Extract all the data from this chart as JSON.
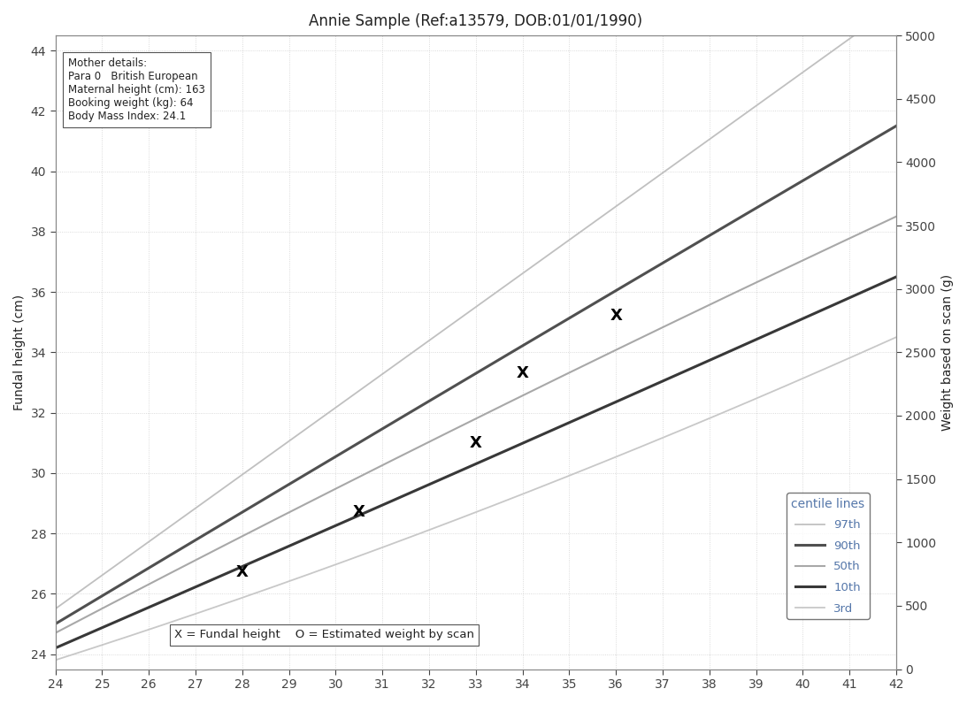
{
  "title": "Annie Sample (Ref:a13579, DOB:01/01/1990)",
  "ylabel_left": "Fundal height (cm)",
  "ylabel_right": "Weight based on scan (g)",
  "xlim": [
    24,
    42
  ],
  "ylim_left": [
    23.5,
    44.5
  ],
  "ylim_right": [
    0,
    5000
  ],
  "xlabel_ticks": [
    24,
    25,
    26,
    27,
    28,
    29,
    30,
    31,
    32,
    33,
    34,
    35,
    36,
    37,
    38,
    39,
    40,
    41,
    42
  ],
  "ylabel_ticks": [
    24,
    26,
    28,
    30,
    32,
    34,
    36,
    38,
    40,
    42,
    44
  ],
  "ylabel_right_ticks": [
    0,
    500,
    1000,
    1500,
    2000,
    2500,
    3000,
    3500,
    4000,
    4500,
    5000
  ],
  "mother_details": "Mother details:\nPara 0   British European\nMaternal height (cm): 163\nBooking weight (kg): 64\nBody Mass Index: 24.1",
  "annotation_label": "X = Fundal height    O = Estimated weight by scan",
  "data_points_x": [
    28.0,
    30.5,
    33.0,
    34.0,
    36.0
  ],
  "data_points_y": [
    26.7,
    28.7,
    31.0,
    33.3,
    35.2
  ],
  "centile_97_color": "#c0c0c0",
  "centile_90_color": "#505050",
  "centile_50_color": "#a8a8a8",
  "centile_10_color": "#383838",
  "centile_3rd_color": "#c8c8c8",
  "centile_97_lw": 1.3,
  "centile_90_lw": 2.2,
  "centile_50_lw": 1.5,
  "centile_10_lw": 2.2,
  "centile_3rd_lw": 1.3,
  "grid_color": "#d0d0d0",
  "bg_color": "#ffffff",
  "text_color": "#222222",
  "title_color": "#222222",
  "legend_text_color": "#5577aa",
  "axis_label_color": "#222222",
  "tick_color": "#444444"
}
